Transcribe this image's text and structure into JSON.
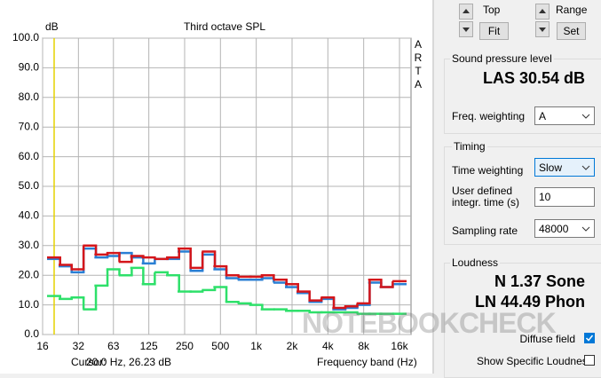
{
  "chart_data": {
    "type": "step",
    "title": "Third octave SPL",
    "y_label": "dB",
    "side_label": "ARTA",
    "x_label": "Frequency band (Hz)",
    "cursor_label": "Cursor:",
    "cursor_readout": "20.0 Hz, 26.23 dB",
    "cursor_x": 20,
    "x": [
      20,
      25,
      31.5,
      40,
      50,
      63,
      80,
      100,
      125,
      160,
      200,
      250,
      315,
      400,
      500,
      630,
      800,
      1000,
      1250,
      1600,
      2000,
      2500,
      3150,
      4000,
      5000,
      6300,
      8000,
      10000,
      12500,
      16000
    ],
    "series": [
      {
        "color": "#2ee06a",
        "values": [
          13,
          12,
          12.5,
          8.5,
          16.5,
          22,
          20,
          22.5,
          17,
          21,
          20,
          14.5,
          14.5,
          15,
          16,
          11,
          10.5,
          10,
          8.5,
          8.5,
          8,
          8,
          7.5,
          7.5,
          7.5,
          7.5,
          7,
          7,
          7,
          7
        ]
      },
      {
        "color": "#2a7fd4",
        "values": [
          25.5,
          23,
          21,
          29,
          26,
          26.5,
          27.5,
          26,
          24,
          25.5,
          25.5,
          28,
          21.5,
          27,
          22,
          19,
          18.5,
          18.5,
          19,
          17.5,
          16,
          14,
          11,
          12,
          8.5,
          9,
          10,
          17.5,
          16,
          17
        ]
      },
      {
        "color": "#d4161b",
        "values": [
          26,
          23.5,
          22,
          30,
          27,
          27.5,
          24.5,
          26.5,
          26,
          25.5,
          26,
          29,
          22.5,
          28,
          23,
          20,
          19.5,
          19.5,
          20,
          18.5,
          17,
          14.5,
          11.5,
          12.5,
          9,
          9.5,
          10.5,
          18.5,
          16,
          18
        ]
      }
    ],
    "log_x": true,
    "grid": true,
    "cursor_color": "#e6d200",
    "xlim": [
      16,
      20000
    ],
    "ylim": [
      0,
      100
    ],
    "xticks": [
      16,
      32,
      63,
      125,
      250,
      500,
      {
        "value": 1000,
        "label": "1k"
      },
      {
        "value": 2000,
        "label": "2k"
      },
      {
        "value": 4000,
        "label": "4k"
      },
      {
        "value": 8000,
        "label": "8k"
      },
      {
        "value": 16000,
        "label": "16k"
      }
    ],
    "yticks": [
      {
        "value": 0,
        "label": "0.0"
      },
      {
        "value": 10,
        "label": "10.0"
      },
      {
        "value": 20,
        "label": "20.0"
      },
      {
        "value": 30,
        "label": "30.0"
      },
      {
        "value": 40,
        "label": "40.0"
      },
      {
        "value": 50,
        "label": "50.0"
      },
      {
        "value": 60,
        "label": "60.0"
      },
      {
        "value": 70,
        "label": "70.0"
      },
      {
        "value": 80,
        "label": "80.0"
      },
      {
        "value": 90,
        "label": "90.0"
      },
      {
        "value": 100,
        "label": "100.0"
      }
    ]
  },
  "panel": {
    "top_label": "Top",
    "fit_button": "Fit",
    "range_label": "Range",
    "set_button": "Set",
    "spl": {
      "title": "Sound pressure level",
      "reading": "LAS 30.54 dB",
      "freq_weighting_label": "Freq. weighting",
      "freq_weighting": "A"
    },
    "timing": {
      "title": "Timing",
      "time_weighting_label": "Time weighting",
      "time_weighting": "Slow",
      "integr_time_label": "User defined integr. time (s)",
      "integr_time": "10",
      "sampling_rate_label": "Sampling rate",
      "sampling_rate": "48000"
    },
    "loudness": {
      "title": "Loudness",
      "n_reading": "N 1.37 Sone",
      "ln_reading": "LN 44.49 Phon",
      "diffuse_field_label": "Diffuse field",
      "show_specific_label": "Show Specific Loudness"
    }
  },
  "watermark": "NOTEBOOKCHECK"
}
